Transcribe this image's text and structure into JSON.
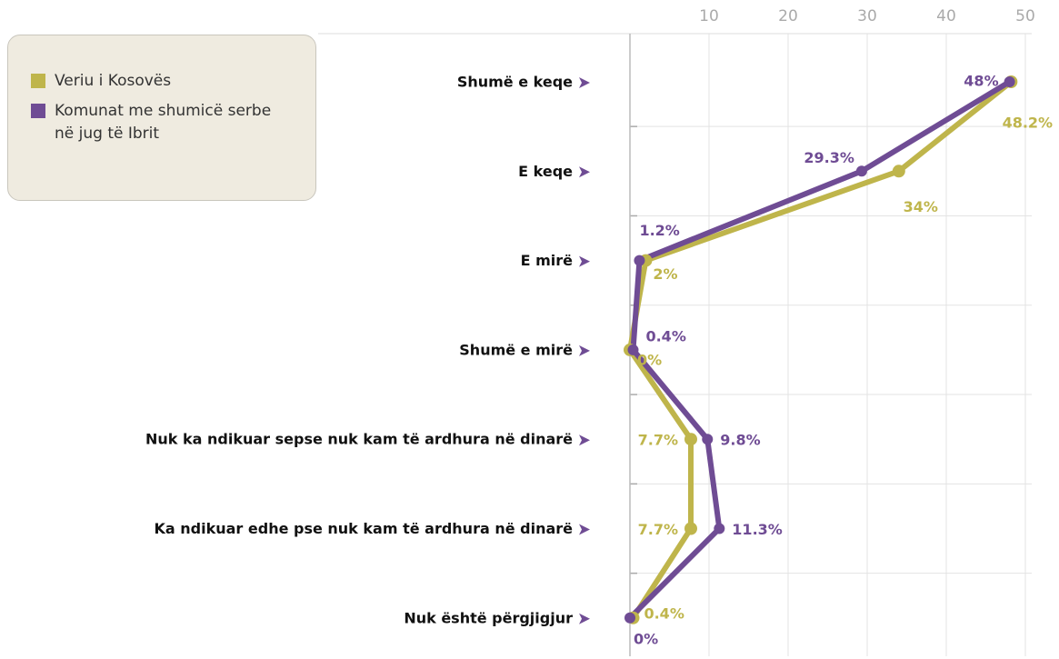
{
  "chart_data": {
    "type": "line",
    "categories": [
      "Shumë e keqe",
      "E keqe",
      "E mirë",
      "Shumë e mirë",
      "Nuk ka ndikuar sepse nuk kam të ardhura në dinarë",
      "Ka ndikuar edhe pse nuk kam të ardhura në dinarë",
      "Nuk është përgjigjur"
    ],
    "series": [
      {
        "name": "Veriu i Kosovës",
        "color": "#bfb54b",
        "values": [
          48.2,
          34,
          2,
          0,
          7.7,
          7.7,
          0.4
        ],
        "value_labels": [
          "48.2%",
          "34%",
          "2%",
          "0%",
          "7.7%",
          "7.7%",
          "0.4%"
        ]
      },
      {
        "name": "Komunat me shumicë serbe në jug të Ibrit",
        "color": "#6f4c94",
        "values": [
          48,
          29.3,
          1.2,
          0.4,
          9.8,
          11.3,
          0
        ],
        "value_labels": [
          "48%",
          "29.3%",
          "1.2%",
          "0.4%",
          "9.8%",
          "11.3%",
          "0%"
        ]
      }
    ],
    "xlim": [
      0,
      50
    ],
    "xticks": [
      10,
      20,
      30,
      40,
      50
    ],
    "grid": true
  }
}
